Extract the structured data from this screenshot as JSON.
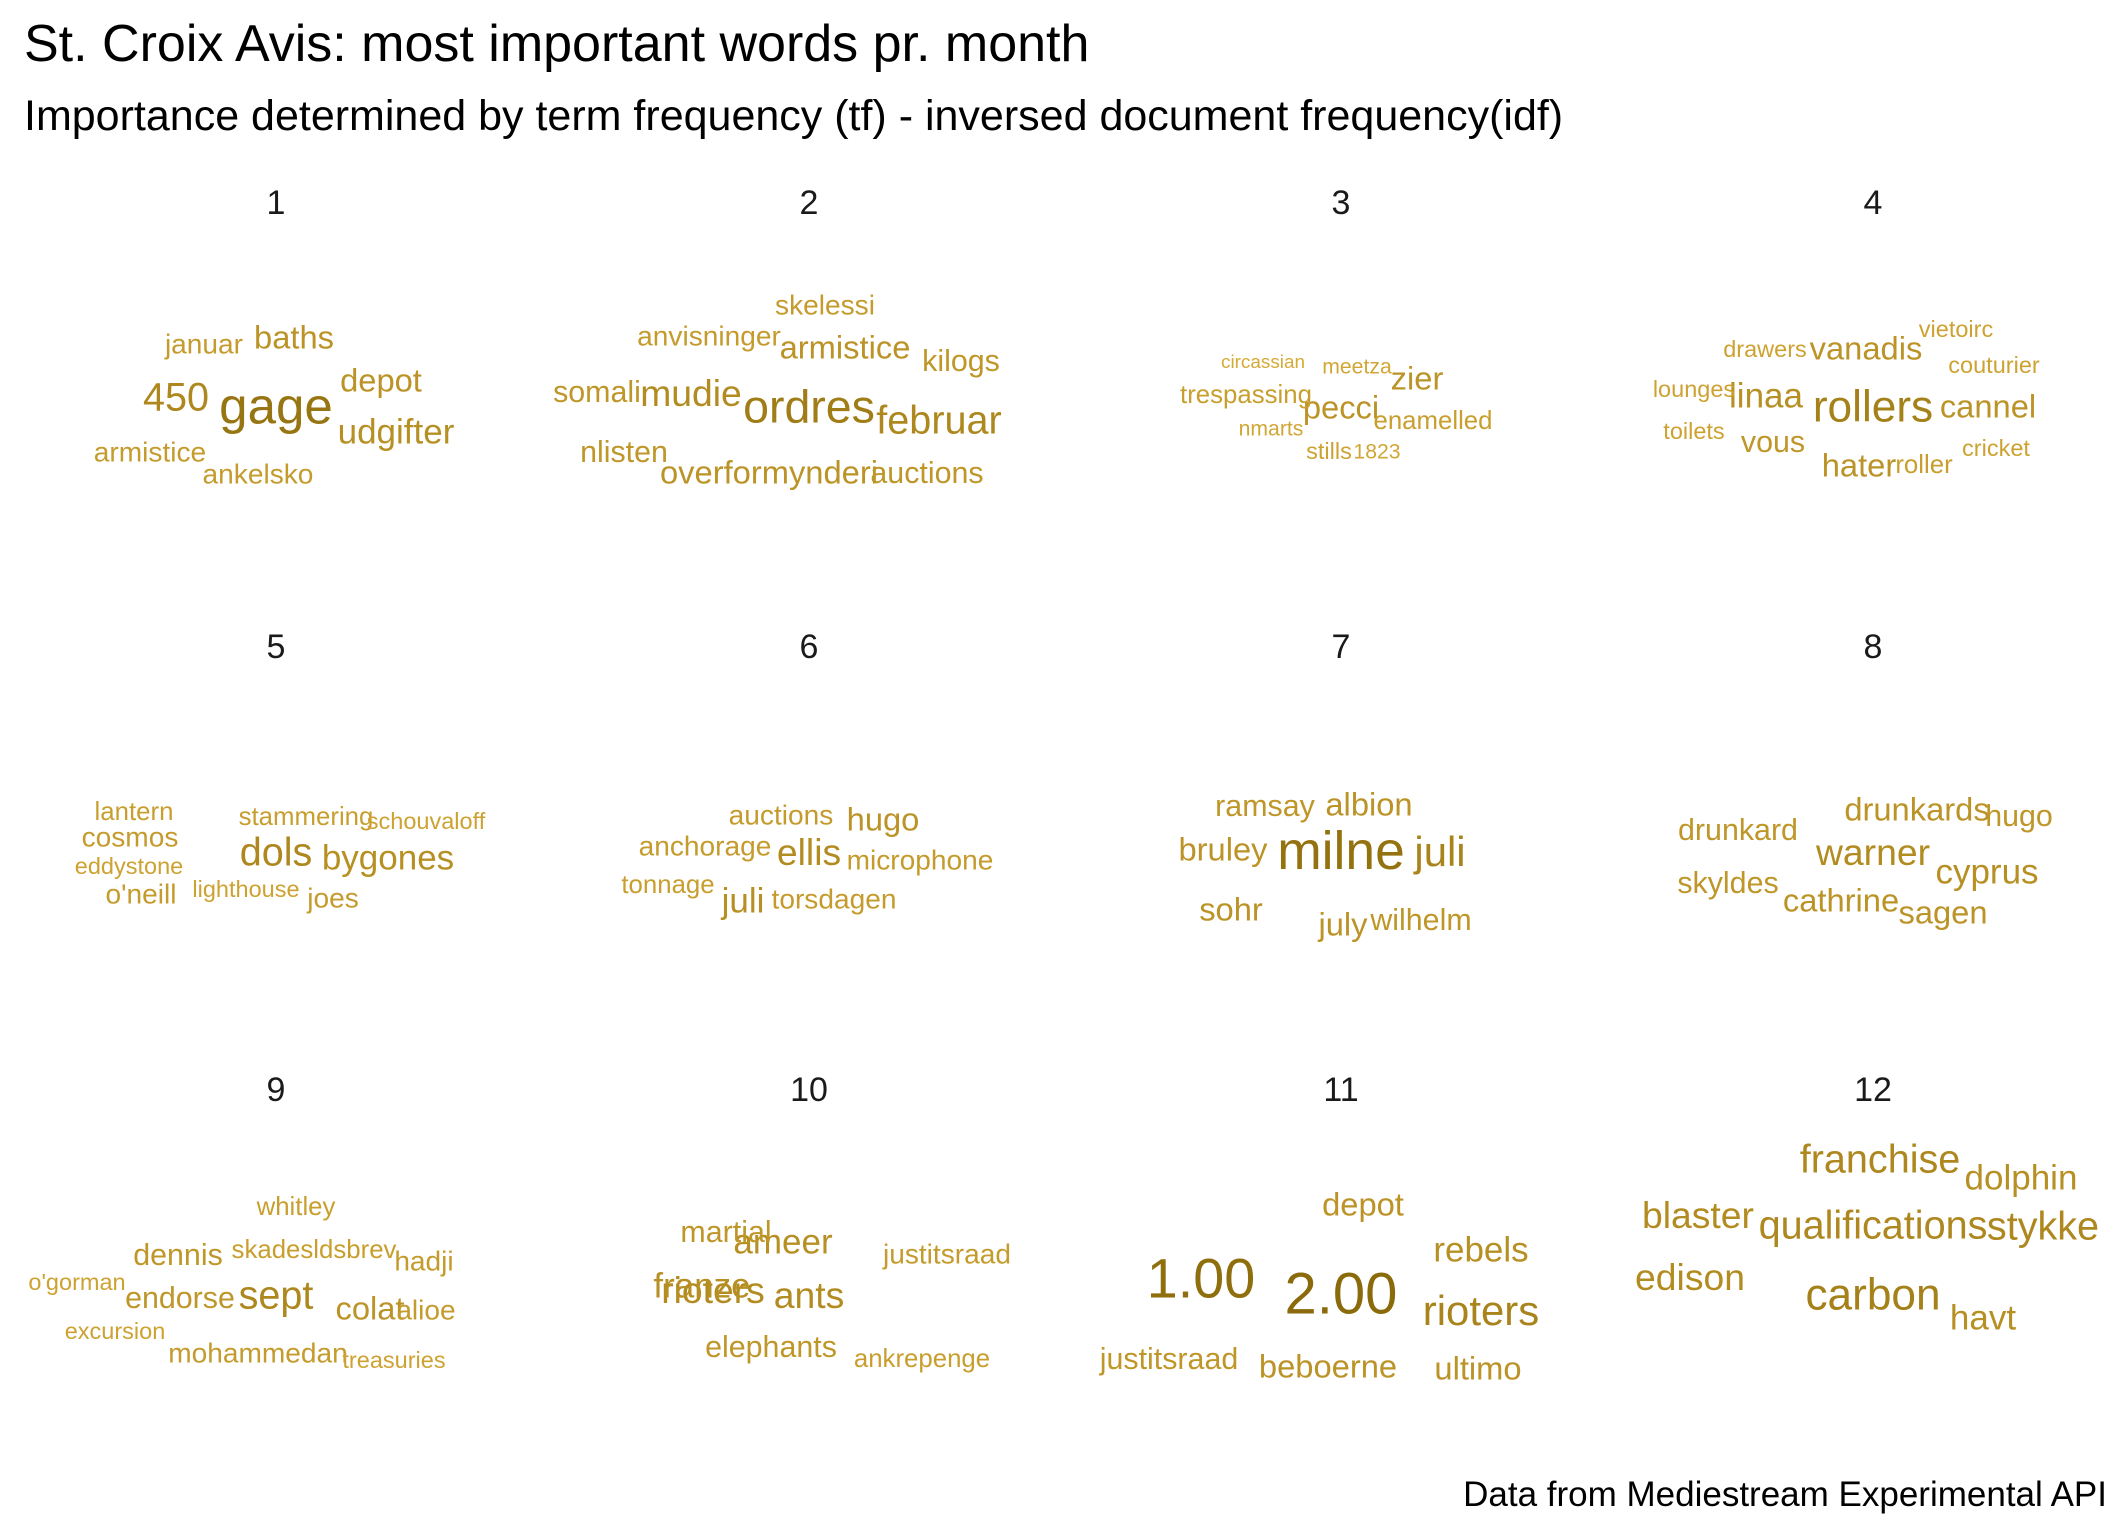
{
  "title": "St. Croix Avis: most important words pr. month",
  "subtitle": "Importance determined by term frequency (tf) - inversed document frequency(idf)",
  "caption": "Data from Mediestream Experimental API",
  "colors": {
    "low": "#E3B53E",
    "high": "#8A6A0A"
  },
  "chart_data": {
    "type": "wordcloud",
    "facet_by": "month",
    "panels": [
      {
        "month": "1",
        "words": [
          {
            "word": "gage",
            "tf_idf": 0.85
          },
          {
            "word": "450",
            "tf_idf": 0.6
          },
          {
            "word": "udgifter",
            "tf_idf": 0.5
          },
          {
            "word": "depot",
            "tf_idf": 0.45
          },
          {
            "word": "baths",
            "tf_idf": 0.45
          },
          {
            "word": "januar",
            "tf_idf": 0.35
          },
          {
            "word": "armistice",
            "tf_idf": 0.35
          },
          {
            "word": "ankelsko",
            "tf_idf": 0.35
          }
        ]
      },
      {
        "month": "2",
        "words": [
          {
            "word": "ordres",
            "tf_idf": 0.75
          },
          {
            "word": "februar",
            "tf_idf": 0.6
          },
          {
            "word": "mudie",
            "tf_idf": 0.55
          },
          {
            "word": "armistice",
            "tf_idf": 0.45
          },
          {
            "word": "overformynderi",
            "tf_idf": 0.45
          },
          {
            "word": "kilogs",
            "tf_idf": 0.4
          },
          {
            "word": "auctions",
            "tf_idf": 0.4
          },
          {
            "word": "somali",
            "tf_idf": 0.4
          },
          {
            "word": "nlisten",
            "tf_idf": 0.4
          },
          {
            "word": "anvisninger",
            "tf_idf": 0.35
          },
          {
            "word": "skelessi",
            "tf_idf": 0.35
          }
        ]
      },
      {
        "month": "3",
        "words": [
          {
            "word": "pecci",
            "tf_idf": 0.45
          },
          {
            "word": "zier",
            "tf_idf": 0.45
          },
          {
            "word": "enamelled",
            "tf_idf": 0.3
          },
          {
            "word": "trespassing",
            "tf_idf": 0.3
          },
          {
            "word": "stills",
            "tf_idf": 0.25
          },
          {
            "word": "1823",
            "tf_idf": 0.2
          },
          {
            "word": "meetza",
            "tf_idf": 0.2
          },
          {
            "word": "nmarts",
            "tf_idf": 0.2
          },
          {
            "word": "circassian",
            "tf_idf": 0.15
          }
        ]
      },
      {
        "month": "4",
        "words": [
          {
            "word": "rollers",
            "tf_idf": 0.7
          },
          {
            "word": "linaa",
            "tf_idf": 0.5
          },
          {
            "word": "cannel",
            "tf_idf": 0.45
          },
          {
            "word": "vanadis",
            "tf_idf": 0.45
          },
          {
            "word": "hater",
            "tf_idf": 0.45
          },
          {
            "word": "vous",
            "tf_idf": 0.4
          },
          {
            "word": "roller",
            "tf_idf": 0.3
          },
          {
            "word": "cricket",
            "tf_idf": 0.25
          },
          {
            "word": "couturier",
            "tf_idf": 0.25
          },
          {
            "word": "vietoirc",
            "tf_idf": 0.25
          },
          {
            "word": "drawers",
            "tf_idf": 0.25
          },
          {
            "word": "lounges",
            "tf_idf": 0.25
          },
          {
            "word": "toilets",
            "tf_idf": 0.25
          }
        ]
      },
      {
        "month": "5",
        "words": [
          {
            "word": "dols",
            "tf_idf": 0.6
          },
          {
            "word": "bygones",
            "tf_idf": 0.5
          },
          {
            "word": "joes",
            "tf_idf": 0.35
          },
          {
            "word": "o'neill",
            "tf_idf": 0.35
          },
          {
            "word": "cosmos",
            "tf_idf": 0.35
          },
          {
            "word": "lantern",
            "tf_idf": 0.3
          },
          {
            "word": "stammering",
            "tf_idf": 0.3
          },
          {
            "word": "lighthouse",
            "tf_idf": 0.25
          },
          {
            "word": "schouvaloff",
            "tf_idf": 0.25
          },
          {
            "word": "eddystone",
            "tf_idf": 0.25
          }
        ]
      },
      {
        "month": "6",
        "words": [
          {
            "word": "ellis",
            "tf_idf": 0.55
          },
          {
            "word": "juli",
            "tf_idf": 0.5
          },
          {
            "word": "hugo",
            "tf_idf": 0.45
          },
          {
            "word": "auctions",
            "tf_idf": 0.35
          },
          {
            "word": "anchorage",
            "tf_idf": 0.35
          },
          {
            "word": "microphone",
            "tf_idf": 0.35
          },
          {
            "word": "torsdagen",
            "tf_idf": 0.35
          },
          {
            "word": "tonnage",
            "tf_idf": 0.3
          }
        ]
      },
      {
        "month": "7",
        "words": [
          {
            "word": "milne",
            "tf_idf": 0.9
          },
          {
            "word": "juli",
            "tf_idf": 0.65
          },
          {
            "word": "bruley",
            "tf_idf": 0.45
          },
          {
            "word": "sohr",
            "tf_idf": 0.45
          },
          {
            "word": "july",
            "tf_idf": 0.45
          },
          {
            "word": "albion",
            "tf_idf": 0.45
          },
          {
            "word": "ramsay",
            "tf_idf": 0.4
          },
          {
            "word": "wilhelm",
            "tf_idf": 0.4
          }
        ]
      },
      {
        "month": "8",
        "words": [
          {
            "word": "warner",
            "tf_idf": 0.55
          },
          {
            "word": "cyprus",
            "tf_idf": 0.5
          },
          {
            "word": "drunkards",
            "tf_idf": 0.45
          },
          {
            "word": "cathrine",
            "tf_idf": 0.45
          },
          {
            "word": "sagen",
            "tf_idf": 0.45
          },
          {
            "word": "hugo",
            "tf_idf": 0.4
          },
          {
            "word": "drunkard",
            "tf_idf": 0.4
          },
          {
            "word": "skyldes",
            "tf_idf": 0.4
          }
        ]
      },
      {
        "month": "9",
        "words": [
          {
            "word": "sept",
            "tf_idf": 0.6
          },
          {
            "word": "colat",
            "tf_idf": 0.45
          },
          {
            "word": "dennis",
            "tf_idf": 0.4
          },
          {
            "word": "endorse",
            "tf_idf": 0.4
          },
          {
            "word": "mohammedan",
            "tf_idf": 0.35
          },
          {
            "word": "alioe",
            "tf_idf": 0.35
          },
          {
            "word": "hadji",
            "tf_idf": 0.35
          },
          {
            "word": "skadesldsbrev",
            "tf_idf": 0.3
          },
          {
            "word": "whitley",
            "tf_idf": 0.3
          },
          {
            "word": "treasuries",
            "tf_idf": 0.25
          },
          {
            "word": "excursion",
            "tf_idf": 0.25
          },
          {
            "word": "o'gorman",
            "tf_idf": 0.25
          }
        ]
      },
      {
        "month": "10",
        "words": [
          {
            "word": "ants",
            "tf_idf": 0.55
          },
          {
            "word": "rioters",
            "tf_idf": 0.55
          },
          {
            "word": "franze",
            "tf_idf": 0.5
          },
          {
            "word": "ameer",
            "tf_idf": 0.5
          },
          {
            "word": "martial",
            "tf_idf": 0.4
          },
          {
            "word": "elephants",
            "tf_idf": 0.4
          },
          {
            "word": "justitsraad",
            "tf_idf": 0.35
          },
          {
            "word": "ankrepenge",
            "tf_idf": 0.3
          }
        ]
      },
      {
        "month": "11",
        "words": [
          {
            "word": "2.00",
            "tf_idf": 1.0
          },
          {
            "word": "1.00",
            "tf_idf": 0.95
          },
          {
            "word": "rioters",
            "tf_idf": 0.65
          },
          {
            "word": "rebels",
            "tf_idf": 0.5
          },
          {
            "word": "depot",
            "tf_idf": 0.45
          },
          {
            "word": "ultimo",
            "tf_idf": 0.45
          },
          {
            "word": "beboerne",
            "tf_idf": 0.45
          },
          {
            "word": "justitsraad",
            "tf_idf": 0.4
          }
        ]
      },
      {
        "month": "12",
        "words": [
          {
            "word": "carbon",
            "tf_idf": 0.7
          },
          {
            "word": "qualifications",
            "tf_idf": 0.6
          },
          {
            "word": "franchise",
            "tf_idf": 0.6
          },
          {
            "word": "stykke",
            "tf_idf": 0.6
          },
          {
            "word": "blaster",
            "tf_idf": 0.55
          },
          {
            "word": "edison",
            "tf_idf": 0.55
          },
          {
            "word": "havt",
            "tf_idf": 0.5
          },
          {
            "word": "dolphin",
            "tf_idf": 0.5
          }
        ]
      }
    ]
  }
}
